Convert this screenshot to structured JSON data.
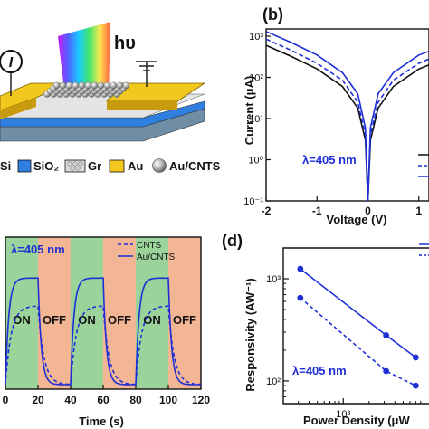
{
  "panel_a": {
    "illum_label": "hυ",
    "current_symbol": "I",
    "legend": [
      "Si",
      "SiO₂",
      "Gr",
      "Au",
      "Au/CNTS"
    ],
    "colors": {
      "si": "#6f8ea6",
      "sio2": "#2f7fe0",
      "au": "#f3c81e",
      "gr": "#cfcfcf"
    }
  },
  "panel_b": {
    "label": "(b)",
    "annotation": "λ=405 nm",
    "ylabel": "Current (μA)",
    "xlabel": "Voltage (V)",
    "xticks": [
      "-2",
      "-1",
      "0",
      "1"
    ],
    "yticks": [
      "10³",
      "10²",
      "10¹",
      "10⁰",
      "10⁻¹"
    ]
  },
  "panel_c": {
    "annotation": "λ=405 nm",
    "legend": [
      "CNTS",
      "Au/CNTS"
    ],
    "xlabel": "Time (s)",
    "xticks": [
      "0",
      "20",
      "40",
      "60",
      "80",
      "100",
      "120"
    ],
    "on_label": "ON",
    "off_label": "OFF",
    "colors": {
      "on": "#9bd39b",
      "off": "#f3b694",
      "line": "#1f2fd6"
    }
  },
  "panel_d": {
    "label": "(d)",
    "annotation": "λ=405 nm",
    "ylabel": "Responsivity (AW⁻¹)",
    "xlabel": "Power Density (μW",
    "xticks": [
      "10³"
    ],
    "yticks": [
      "10³",
      "10²"
    ]
  },
  "chart_data": [
    {
      "type": "line",
      "panel": "b",
      "xlabel": "Voltage (V)",
      "ylabel": "Current (μA)",
      "yscale": "log",
      "xlim": [
        -2.0,
        1.2
      ],
      "ylim": [
        0.1,
        1500
      ],
      "series": [
        {
          "style": "solid-black",
          "x": [
            -2,
            -1.5,
            -1,
            -0.5,
            -0.2,
            -0.05,
            0,
            0.05,
            0.2,
            0.5,
            1,
            1.2
          ],
          "y": [
            600,
            320,
            160,
            60,
            18,
            3,
            0.1,
            3,
            18,
            60,
            160,
            200
          ]
        },
        {
          "style": "dashed-blue",
          "x": [
            -2,
            -1.5,
            -1,
            -0.5,
            -0.2,
            -0.05,
            0,
            0.05,
            0.2,
            0.5,
            1,
            1.2
          ],
          "y": [
            850,
            450,
            220,
            85,
            25,
            4,
            0.1,
            4,
            25,
            85,
            220,
            280
          ]
        },
        {
          "style": "solid-blue",
          "x": [
            -2,
            -1.5,
            -1,
            -0.5,
            -0.2,
            -0.05,
            0,
            0.05,
            0.2,
            0.5,
            1,
            1.2
          ],
          "y": [
            1300,
            700,
            350,
            130,
            40,
            6,
            0.1,
            6,
            40,
            130,
            350,
            430
          ]
        }
      ]
    },
    {
      "type": "line",
      "panel": "c",
      "xlabel": "Time (s)",
      "xlim": [
        0,
        120
      ],
      "on_intervals": [
        [
          0,
          20
        ],
        [
          40,
          60
        ],
        [
          80,
          100
        ]
      ],
      "series": [
        {
          "name": "CNTS",
          "style": "dashed",
          "high": 0.68,
          "low": 0.0
        },
        {
          "name": "Au/CNTS",
          "style": "solid",
          "high": 0.92,
          "low": 0.0
        }
      ]
    },
    {
      "type": "line",
      "panel": "d",
      "xlabel": "Power Density (μW",
      "ylabel": "Responsivity (AW⁻¹)",
      "xscale": "log",
      "yscale": "log",
      "xlim": [
        200,
        10000
      ],
      "ylim": [
        60,
        2000
      ],
      "series": [
        {
          "style": "solid",
          "x": [
            316,
            3162,
            7000
          ],
          "y": [
            1250,
            280,
            170
          ]
        },
        {
          "style": "dashed",
          "x": [
            316,
            3162,
            7000
          ],
          "y": [
            650,
            125,
            90
          ]
        }
      ]
    }
  ]
}
